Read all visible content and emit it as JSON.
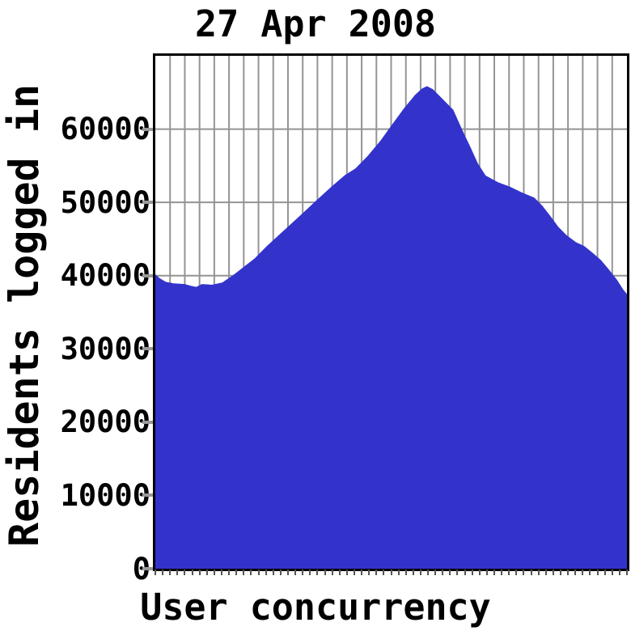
{
  "chart_data": {
    "type": "area",
    "title": "27 Apr 2008",
    "xlabel": "User concurrency",
    "ylabel": "Residents logged in",
    "ylim": [
      0,
      70000
    ],
    "y_tick_values": [
      0,
      10000,
      20000,
      30000,
      40000,
      50000,
      60000
    ],
    "y_tick_labels": [
      "0",
      "10000",
      "20000",
      "30000",
      "40000",
      "50000",
      "60000"
    ],
    "x_gridline_intervals": 32,
    "x_minor_tick_intervals": 64,
    "grid": true,
    "legend_position": "none",
    "colors": {
      "fill": "#3333cc",
      "grid": "#949494",
      "frame": "#000000",
      "text": "#000000",
      "y_tick": "#999999",
      "x_tick": "#555555",
      "background": "#ffffff"
    },
    "series": [
      {
        "name": "Residents logged in",
        "points": [
          [
            0.0,
            40100
          ],
          [
            0.009,
            39600
          ],
          [
            0.022,
            39100
          ],
          [
            0.039,
            38900
          ],
          [
            0.062,
            38800
          ],
          [
            0.079,
            38500
          ],
          [
            0.087,
            38400
          ],
          [
            0.099,
            38800
          ],
          [
            0.12,
            38700
          ],
          [
            0.142,
            39000
          ],
          [
            0.163,
            39900
          ],
          [
            0.185,
            41000
          ],
          [
            0.211,
            42300
          ],
          [
            0.237,
            44000
          ],
          [
            0.271,
            46000
          ],
          [
            0.305,
            48000
          ],
          [
            0.34,
            50100
          ],
          [
            0.374,
            52100
          ],
          [
            0.403,
            53700
          ],
          [
            0.425,
            54600
          ],
          [
            0.451,
            56300
          ],
          [
            0.477,
            58300
          ],
          [
            0.503,
            60600
          ],
          [
            0.528,
            62800
          ],
          [
            0.551,
            64600
          ],
          [
            0.566,
            65500
          ],
          [
            0.576,
            65800
          ],
          [
            0.588,
            65400
          ],
          [
            0.605,
            64300
          ],
          [
            0.631,
            62600
          ],
          [
            0.654,
            59300
          ],
          [
            0.666,
            57700
          ],
          [
            0.683,
            55300
          ],
          [
            0.7,
            53600
          ],
          [
            0.726,
            52700
          ],
          [
            0.751,
            52100
          ],
          [
            0.777,
            51300
          ],
          [
            0.803,
            50600
          ],
          [
            0.82,
            49500
          ],
          [
            0.837,
            48100
          ],
          [
            0.854,
            46600
          ],
          [
            0.871,
            45500
          ],
          [
            0.892,
            44500
          ],
          [
            0.909,
            44000
          ],
          [
            0.926,
            43100
          ],
          [
            0.944,
            42100
          ],
          [
            0.961,
            40800
          ],
          [
            0.978,
            39400
          ],
          [
            0.991,
            38100
          ],
          [
            1.0,
            37400
          ]
        ]
      }
    ]
  }
}
